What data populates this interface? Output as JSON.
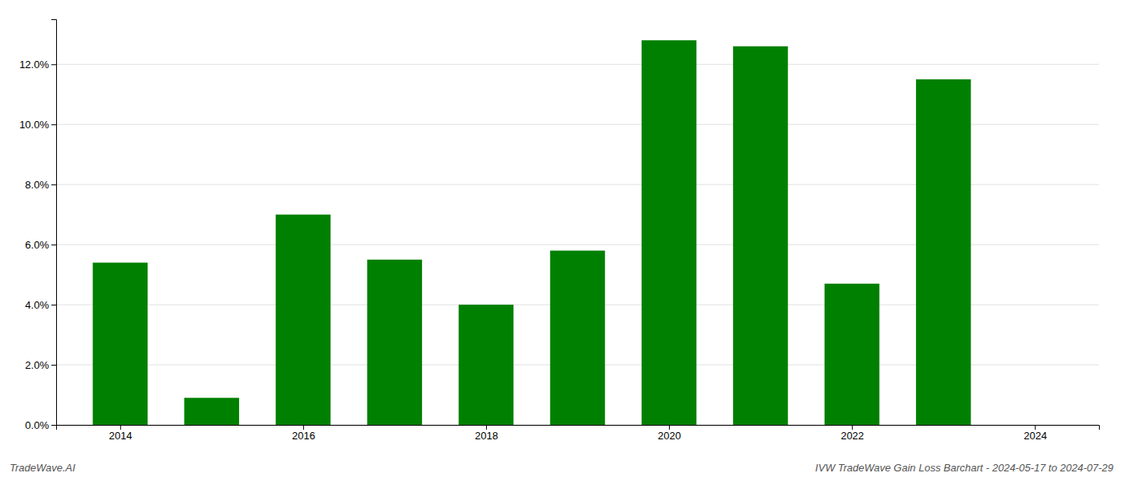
{
  "chart_data": {
    "type": "bar",
    "x": [
      2014,
      2015,
      2016,
      2017,
      2018,
      2019,
      2020,
      2021,
      2022,
      2023
    ],
    "values": [
      0.054,
      0.009,
      0.07,
      0.055,
      0.04,
      0.058,
      0.128,
      0.126,
      0.047,
      0.115
    ],
    "color": "#008000",
    "xlim": [
      2013.3,
      2024.7
    ],
    "xticks": [
      2014,
      2016,
      2018,
      2020,
      2022,
      2024
    ],
    "ylim": [
      0,
      0.135
    ],
    "yticks": [
      {
        "value": 0.0,
        "label": "0.0%"
      },
      {
        "value": 0.02,
        "label": "2.0%"
      },
      {
        "value": 0.04,
        "label": "4.0%"
      },
      {
        "value": 0.06,
        "label": "6.0%"
      },
      {
        "value": 0.08,
        "label": "8.0%"
      },
      {
        "value": 0.1,
        "label": "10.0%"
      },
      {
        "value": 0.12,
        "label": "12.0%"
      }
    ],
    "grid": true,
    "annotations": [
      "TradeWave.AI",
      "IVW TradeWave Gain Loss Barchart - 2024-05-17 to 2024-07-29"
    ]
  }
}
